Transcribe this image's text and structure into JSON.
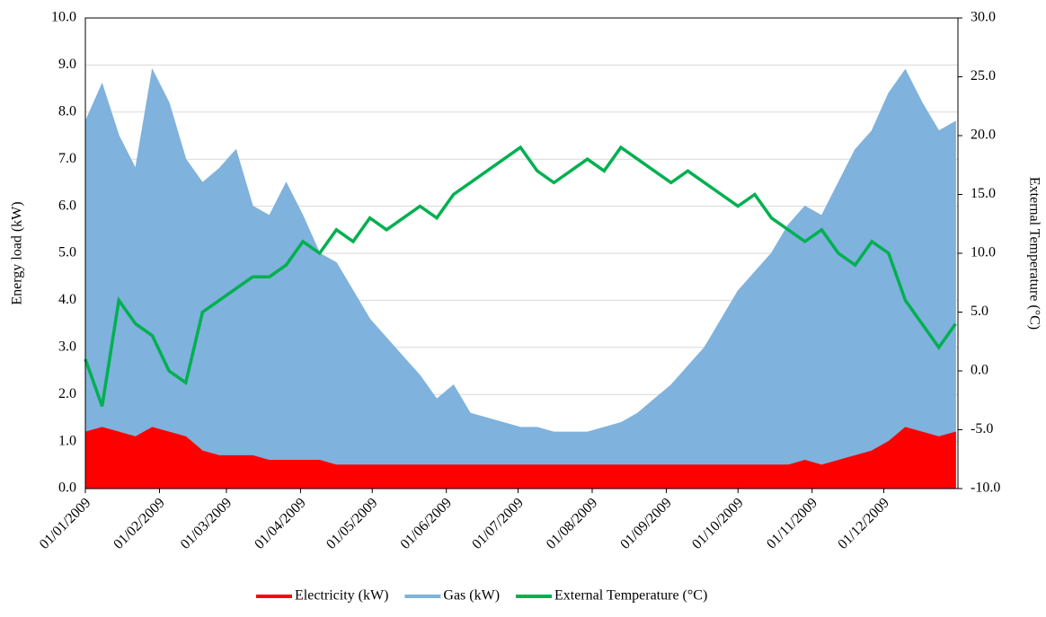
{
  "chart_data": {
    "type": "line",
    "y_label": "Energy load (kW)",
    "y2_label": "External Temperature (°C)",
    "x": [
      0,
      7,
      14,
      21,
      28,
      35,
      42,
      49,
      56,
      63,
      70,
      77,
      84,
      91,
      98,
      105,
      112,
      119,
      126,
      133,
      140,
      147,
      154,
      161,
      168,
      175,
      182,
      189,
      196,
      203,
      210,
      217,
      224,
      231,
      238,
      245,
      252,
      259,
      266,
      273,
      280,
      287,
      294,
      301,
      308,
      315,
      322,
      329,
      336,
      343,
      350,
      357,
      364
    ],
    "xlim": [
      0,
      365
    ],
    "xticks": [
      {
        "value": 0,
        "label": "01/01/2009"
      },
      {
        "value": 31,
        "label": "01/02/2009"
      },
      {
        "value": 59,
        "label": "01/03/2009"
      },
      {
        "value": 90,
        "label": "01/04/2009"
      },
      {
        "value": 120,
        "label": "01/05/2009"
      },
      {
        "value": 151,
        "label": "01/06/2009"
      },
      {
        "value": 181,
        "label": "01/07/2009"
      },
      {
        "value": 212,
        "label": "01/08/2009"
      },
      {
        "value": 243,
        "label": "01/09/2009"
      },
      {
        "value": 273,
        "label": "01/10/2009"
      },
      {
        "value": 304,
        "label": "01/11/2009"
      },
      {
        "value": 334,
        "label": "01/12/2009"
      }
    ],
    "ylim": [
      0,
      10
    ],
    "yticks": [
      {
        "value": 0,
        "label": "0.0"
      },
      {
        "value": 1,
        "label": "1.0"
      },
      {
        "value": 2,
        "label": "2.0"
      },
      {
        "value": 3,
        "label": "3.0"
      },
      {
        "value": 4,
        "label": "4.0"
      },
      {
        "value": 5,
        "label": "5.0"
      },
      {
        "value": 6,
        "label": "6.0"
      },
      {
        "value": 7,
        "label": "7.0"
      },
      {
        "value": 8,
        "label": "8.0"
      },
      {
        "value": 9,
        "label": "9.0"
      },
      {
        "value": 10,
        "label": "10.0"
      }
    ],
    "y2lim": [
      -10,
      30
    ],
    "y2ticks": [
      {
        "value": -10,
        "label": "-10.0"
      },
      {
        "value": -5,
        "label": "-5.0"
      },
      {
        "value": 0,
        "label": "0.0"
      },
      {
        "value": 5,
        "label": "5.0"
      },
      {
        "value": 10,
        "label": "10.0"
      },
      {
        "value": 15,
        "label": "15.0"
      },
      {
        "value": 20,
        "label": "20.0"
      },
      {
        "value": 25,
        "label": "25.0"
      },
      {
        "value": 30,
        "label": "30.0"
      }
    ],
    "grid": true,
    "legend": "bottom",
    "series": [
      {
        "name": "Gas (kW)",
        "color": "#7fb2dd",
        "fill": true,
        "values": [
          7.8,
          8.6,
          7.5,
          6.8,
          8.9,
          8.2,
          7.0,
          6.5,
          6.8,
          7.2,
          6.0,
          5.8,
          6.5,
          5.8,
          5.0,
          4.8,
          4.2,
          3.6,
          3.2,
          2.8,
          2.4,
          1.9,
          2.2,
          1.6,
          1.5,
          1.4,
          1.3,
          1.3,
          1.2,
          1.2,
          1.2,
          1.3,
          1.4,
          1.6,
          1.9,
          2.2,
          2.6,
          3.0,
          3.6,
          4.2,
          4.6,
          5.0,
          5.6,
          6.0,
          5.8,
          6.5,
          7.2,
          7.6,
          8.4,
          8.9,
          8.2,
          7.6,
          7.8
        ]
      },
      {
        "name": "Electricity (kW)",
        "color": "#ff0000",
        "fill": true,
        "values": [
          1.2,
          1.3,
          1.2,
          1.1,
          1.3,
          1.2,
          1.1,
          0.8,
          0.7,
          0.7,
          0.7,
          0.6,
          0.6,
          0.6,
          0.6,
          0.5,
          0.5,
          0.5,
          0.5,
          0.5,
          0.5,
          0.5,
          0.5,
          0.5,
          0.5,
          0.5,
          0.5,
          0.5,
          0.5,
          0.5,
          0.5,
          0.5,
          0.5,
          0.5,
          0.5,
          0.5,
          0.5,
          0.5,
          0.5,
          0.5,
          0.5,
          0.5,
          0.5,
          0.6,
          0.5,
          0.6,
          0.7,
          0.8,
          1.0,
          1.3,
          1.2,
          1.1,
          1.2
        ]
      },
      {
        "name": "External Temperature (°C)",
        "color": "#00b050",
        "axis": "y2",
        "values": [
          1,
          -3,
          6,
          4,
          3,
          0,
          -1,
          5,
          6,
          7,
          8,
          8,
          9,
          11,
          10,
          12,
          11,
          13,
          12,
          13,
          14,
          13,
          15,
          16,
          17,
          18,
          19,
          17,
          16,
          17,
          18,
          17,
          19,
          18,
          17,
          16,
          17,
          16,
          15,
          14,
          15,
          13,
          12,
          11,
          12,
          10,
          9,
          11,
          10,
          6,
          4,
          2,
          4
        ]
      }
    ],
    "legend_order": [
      1,
      0,
      2
    ]
  }
}
